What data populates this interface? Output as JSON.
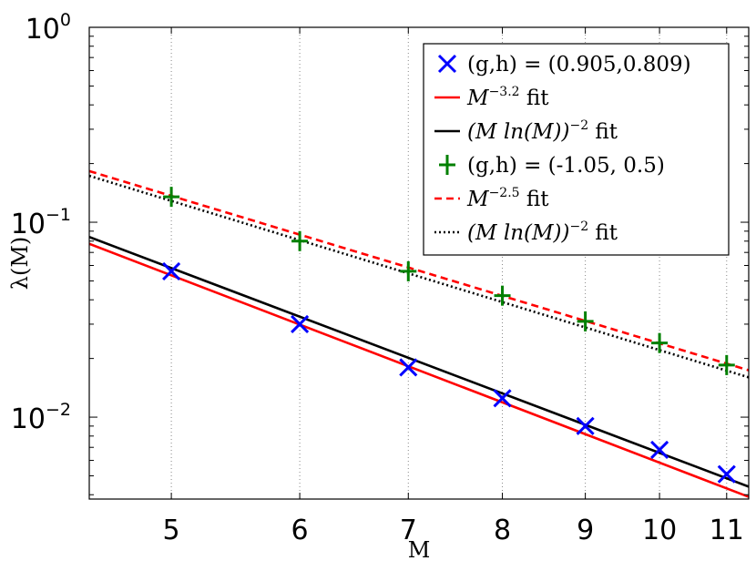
{
  "chart_data": {
    "type": "line",
    "title": "",
    "xlabel": "M",
    "ylabel": "λ(M)",
    "xscale": "log",
    "yscale": "log",
    "xlim": [
      4.45,
      11.35
    ],
    "ylim": [
      0.0038,
      1.0
    ],
    "x_ticks": [
      "5",
      "6",
      "7",
      "8",
      "9",
      "10",
      "11"
    ],
    "y_ticks": [
      {
        "value": 1,
        "base": "10",
        "exp": "0"
      },
      {
        "value": 0.1,
        "base": "10",
        "exp": "−1"
      },
      {
        "value": 0.01,
        "base": "10",
        "exp": "−2"
      }
    ],
    "grid": {
      "x_major": true,
      "style": "dotted"
    },
    "legend_position": "top-right",
    "series": [
      {
        "name": "(g,h) = (0.905,0.809)",
        "kind": "markers",
        "marker": "x",
        "color": "#0000ff",
        "x": [
          5,
          6,
          7,
          8,
          9,
          10,
          11
        ],
        "y": [
          0.056,
          0.03,
          0.018,
          0.0125,
          0.009,
          0.0068,
          0.0051
        ]
      },
      {
        "name": "M^{−3.2} fit",
        "label_math": "M",
        "label_exp": "−3.2",
        "label_suffix": " fit",
        "kind": "line",
        "color": "#ff0000",
        "dash": "solid",
        "x": [
          4.45,
          11.35
        ],
        "y": [
          0.0775,
          0.0039
        ]
      },
      {
        "name": "(M ln(M))^{−2} fit",
        "label_math": "(M ln(M))",
        "label_exp": "−2",
        "label_suffix": " fit",
        "kind": "line",
        "color": "#000000",
        "dash": "solid",
        "x": [
          4.45,
          11.35
        ],
        "y": [
          0.084,
          0.0044
        ]
      },
      {
        "name": "(g,h) = (-1.05, 0.5)",
        "kind": "markers",
        "marker": "+",
        "color": "#008000",
        "x": [
          5,
          6,
          7,
          8,
          9,
          10,
          11
        ],
        "y": [
          0.135,
          0.08,
          0.056,
          0.042,
          0.031,
          0.024,
          0.0185
        ]
      },
      {
        "name": "M^{−2.5} fit",
        "label_math": "M",
        "label_exp": "−2.5",
        "label_suffix": " fit",
        "kind": "line",
        "color": "#ff0000",
        "dash": "dashed",
        "x": [
          4.45,
          11.35
        ],
        "y": [
          0.183,
          0.0174
        ]
      },
      {
        "name": "(M ln(M))^{−2} fit",
        "label_math": "(M ln(M))",
        "label_exp": "−2",
        "label_suffix": " fit",
        "kind": "line",
        "color": "#000000",
        "dash": "dotted",
        "x": [
          4.45,
          11.35
        ],
        "y": [
          0.173,
          0.016
        ]
      }
    ]
  }
}
